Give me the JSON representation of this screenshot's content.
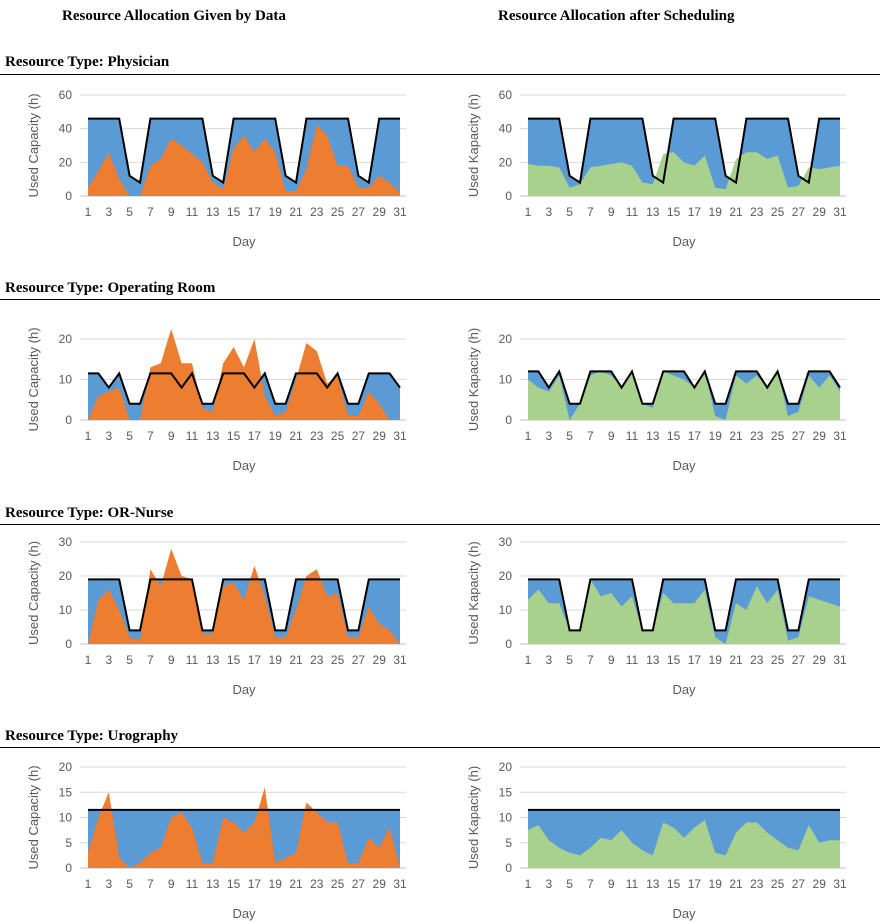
{
  "headers": {
    "left": "Resource Allocation Given by Data",
    "right": "Resource Allocation after Scheduling"
  },
  "colors": {
    "available": "#5b9bd5",
    "given": "#ed7d31",
    "scheduled": "#a9d18e",
    "capacity_line": "#000000",
    "grid": "#d9d9d9",
    "axis_text": "#595959"
  },
  "sections": [
    {
      "title": "Resource Type: Physician"
    },
    {
      "title": "Resource Type: Operating Room"
    },
    {
      "title": "Resource Type: OR-Nurse"
    },
    {
      "title": "Resource Type: Urography"
    }
  ],
  "chart_data": [
    {
      "type": "area",
      "section": 0,
      "panel": "given",
      "xlabel": "Day",
      "ylabel": "Used Capacity (h)",
      "ylim": [
        0,
        60
      ],
      "yticks": [
        0,
        20,
        40,
        60
      ],
      "x": [
        1,
        2,
        3,
        4,
        5,
        6,
        7,
        8,
        9,
        10,
        11,
        12,
        13,
        14,
        15,
        16,
        17,
        18,
        19,
        20,
        21,
        22,
        23,
        24,
        25,
        26,
        27,
        28,
        29,
        30,
        31
      ],
      "xtick_labels": [
        "1",
        "3",
        "5",
        "7",
        "9",
        "11",
        "13",
        "15",
        "17",
        "19",
        "21",
        "23",
        "25",
        "27",
        "29",
        "31"
      ],
      "capacity": [
        46,
        46,
        46,
        46,
        12,
        8,
        46,
        46,
        46,
        46,
        46,
        46,
        12,
        8,
        46,
        46,
        46,
        46,
        46,
        12,
        8,
        46,
        46,
        46,
        46,
        46,
        12,
        8,
        46,
        46,
        46
      ],
      "used": [
        5,
        15,
        26,
        10,
        0,
        0,
        18,
        22,
        34,
        30,
        25,
        20,
        8,
        4,
        28,
        36,
        26,
        34,
        26,
        3,
        3,
        16,
        42,
        36,
        18,
        18,
        5,
        5,
        12,
        8,
        2
      ]
    },
    {
      "type": "area",
      "section": 0,
      "panel": "scheduled",
      "xlabel": "Day",
      "ylabel": "Used Kapacity (h)",
      "ylim": [
        0,
        60
      ],
      "yticks": [
        0,
        20,
        40,
        60
      ],
      "x": [
        1,
        2,
        3,
        4,
        5,
        6,
        7,
        8,
        9,
        10,
        11,
        12,
        13,
        14,
        15,
        16,
        17,
        18,
        19,
        20,
        21,
        22,
        23,
        24,
        25,
        26,
        27,
        28,
        29,
        30,
        31
      ],
      "xtick_labels": [
        "1",
        "3",
        "5",
        "7",
        "9",
        "11",
        "13",
        "15",
        "17",
        "19",
        "21",
        "23",
        "25",
        "27",
        "29",
        "31"
      ],
      "capacity": [
        46,
        46,
        46,
        46,
        12,
        8,
        46,
        46,
        46,
        46,
        46,
        46,
        12,
        8,
        46,
        46,
        46,
        46,
        46,
        12,
        8,
        46,
        46,
        46,
        46,
        46,
        12,
        8,
        46,
        46,
        46
      ],
      "used": [
        19,
        18,
        18,
        17,
        5,
        7,
        17,
        18,
        19,
        20,
        18,
        8,
        7,
        25,
        26,
        20,
        18,
        24,
        5,
        4,
        22,
        26,
        26,
        22,
        24,
        5,
        6,
        17,
        16,
        17,
        18
      ]
    },
    {
      "type": "area",
      "section": 1,
      "panel": "given",
      "xlabel": "Day",
      "ylabel": "Used Capacity (h)",
      "ylim": [
        0,
        25
      ],
      "yticks": [
        0,
        10,
        20
      ],
      "x": [
        1,
        2,
        3,
        4,
        5,
        6,
        7,
        8,
        9,
        10,
        11,
        12,
        13,
        14,
        15,
        16,
        17,
        18,
        19,
        20,
        21,
        22,
        23,
        24,
        25,
        26,
        27,
        28,
        29,
        30,
        31
      ],
      "xtick_labels": [
        "1",
        "3",
        "5",
        "7",
        "9",
        "11",
        "13",
        "15",
        "17",
        "19",
        "21",
        "23",
        "25",
        "27",
        "29",
        "31"
      ],
      "capacity": [
        11.5,
        11.5,
        8,
        11.5,
        4,
        4,
        11.5,
        11.5,
        11.5,
        8,
        11.5,
        4,
        4,
        11.5,
        11.5,
        11.5,
        8,
        11.5,
        4,
        4,
        11.5,
        11.5,
        11.5,
        8,
        11.5,
        4,
        4,
        11.5,
        11.5,
        11.5,
        8
      ],
      "used": [
        0,
        6,
        7,
        8,
        0,
        0,
        13,
        14,
        22.5,
        14,
        14,
        3,
        2,
        14,
        18,
        13,
        20,
        6,
        1,
        2,
        10,
        19,
        17,
        9,
        11,
        1,
        1,
        7,
        4,
        0,
        0
      ]
    },
    {
      "type": "area",
      "section": 1,
      "panel": "scheduled",
      "xlabel": "Day",
      "ylabel": "Used Kapacity (h)",
      "ylim": [
        0,
        25
      ],
      "yticks": [
        0,
        10,
        20
      ],
      "x": [
        1,
        2,
        3,
        4,
        5,
        6,
        7,
        8,
        9,
        10,
        11,
        12,
        13,
        14,
        15,
        16,
        17,
        18,
        19,
        20,
        21,
        22,
        23,
        24,
        25,
        26,
        27,
        28,
        29,
        30,
        31
      ],
      "xtick_labels": [
        "1",
        "3",
        "5",
        "7",
        "9",
        "11",
        "13",
        "15",
        "17",
        "19",
        "21",
        "23",
        "25",
        "27",
        "29",
        "31"
      ],
      "capacity": [
        12,
        12,
        8,
        12,
        4,
        4,
        12,
        12,
        12,
        8,
        12,
        4,
        4,
        12,
        12,
        12,
        8,
        12,
        4,
        4,
        12,
        12,
        12,
        8,
        12,
        4,
        4,
        12,
        12,
        12,
        8
      ],
      "used": [
        10,
        8,
        7,
        11,
        0,
        4,
        11,
        12,
        11,
        8,
        12,
        4,
        3,
        12,
        11,
        10,
        8,
        12,
        1,
        0,
        11,
        9,
        11,
        8,
        12,
        1,
        2,
        11,
        8,
        11,
        7
      ]
    },
    {
      "type": "area",
      "section": 2,
      "panel": "given",
      "xlabel": "Day",
      "ylabel": "Used Capacity (h)",
      "ylim": [
        0,
        30
      ],
      "yticks": [
        0,
        10,
        20,
        30
      ],
      "x": [
        1,
        2,
        3,
        4,
        5,
        6,
        7,
        8,
        9,
        10,
        11,
        12,
        13,
        14,
        15,
        16,
        17,
        18,
        19,
        20,
        21,
        22,
        23,
        24,
        25,
        26,
        27,
        28,
        29,
        30,
        31
      ],
      "xtick_labels": [
        "1",
        "3",
        "5",
        "7",
        "9",
        "11",
        "13",
        "15",
        "17",
        "19",
        "21",
        "23",
        "25",
        "27",
        "29",
        "31"
      ],
      "capacity": [
        19,
        19,
        19,
        19,
        4,
        4,
        19,
        19,
        19,
        19,
        19,
        4,
        4,
        19,
        19,
        19,
        19,
        19,
        4,
        4,
        19,
        19,
        19,
        19,
        19,
        4,
        4,
        19,
        19,
        19,
        19
      ],
      "used": [
        0,
        13,
        16,
        10,
        2,
        1,
        22,
        17,
        28,
        20,
        19,
        3,
        3,
        17,
        18,
        13,
        23,
        14,
        2,
        2,
        10,
        20,
        22,
        14,
        15,
        2,
        2,
        11,
        6,
        4,
        0
      ]
    },
    {
      "type": "area",
      "section": 2,
      "panel": "scheduled",
      "xlabel": "Day",
      "ylabel": "Used Kapacity (h)",
      "ylim": [
        0,
        30
      ],
      "yticks": [
        0,
        10,
        20,
        30
      ],
      "x": [
        1,
        2,
        3,
        4,
        5,
        6,
        7,
        8,
        9,
        10,
        11,
        12,
        13,
        14,
        15,
        16,
        17,
        18,
        19,
        20,
        21,
        22,
        23,
        24,
        25,
        26,
        27,
        28,
        29,
        30,
        31
      ],
      "xtick_labels": [
        "1",
        "3",
        "5",
        "7",
        "9",
        "11",
        "13",
        "15",
        "17",
        "19",
        "21",
        "23",
        "25",
        "27",
        "29",
        "31"
      ],
      "capacity": [
        19,
        19,
        19,
        19,
        4,
        4,
        19,
        19,
        19,
        19,
        19,
        4,
        4,
        19,
        19,
        19,
        19,
        19,
        4,
        4,
        19,
        19,
        19,
        19,
        19,
        4,
        4,
        19,
        19,
        19,
        19
      ],
      "used": [
        13,
        16,
        12,
        12,
        4,
        4,
        19,
        14,
        15,
        11,
        14,
        4,
        4,
        15,
        12,
        12,
        12,
        16,
        2,
        0,
        12,
        10,
        17,
        12,
        16,
        1,
        2,
        14,
        13,
        12,
        11
      ]
    },
    {
      "type": "area",
      "section": 3,
      "panel": "given",
      "xlabel": "Day",
      "ylabel": "Used Capacity (h)",
      "ylim": [
        0,
        20
      ],
      "yticks": [
        0,
        5,
        10,
        15,
        20
      ],
      "x": [
        1,
        2,
        3,
        4,
        5,
        6,
        7,
        8,
        9,
        10,
        11,
        12,
        13,
        14,
        15,
        16,
        17,
        18,
        19,
        20,
        21,
        22,
        23,
        24,
        25,
        26,
        27,
        28,
        29,
        30,
        31
      ],
      "xtick_labels": [
        "1",
        "3",
        "5",
        "7",
        "9",
        "11",
        "13",
        "15",
        "17",
        "19",
        "21",
        "23",
        "25",
        "27",
        "29",
        "31"
      ],
      "capacity": [
        11.5,
        11.5,
        11.5,
        11.5,
        11.5,
        11.5,
        11.5,
        11.5,
        11.5,
        11.5,
        11.5,
        11.5,
        11.5,
        11.5,
        11.5,
        11.5,
        11.5,
        11.5,
        11.5,
        11.5,
        11.5,
        11.5,
        11.5,
        11.5,
        11.5,
        11.5,
        11.5,
        11.5,
        11.5,
        11.5,
        11.5
      ],
      "used": [
        3,
        10,
        15,
        2,
        0,
        1,
        3,
        4,
        10,
        11,
        8,
        1,
        1,
        10,
        9,
        7,
        9,
        16,
        1,
        2,
        3,
        13,
        11,
        9,
        9,
        1,
        1,
        6,
        4,
        8,
        0
      ]
    },
    {
      "type": "area",
      "section": 3,
      "panel": "scheduled",
      "xlabel": "Day",
      "ylabel": "Used Kapacity (h)",
      "ylim": [
        0,
        20
      ],
      "yticks": [
        0,
        5,
        10,
        15,
        20
      ],
      "x": [
        1,
        2,
        3,
        4,
        5,
        6,
        7,
        8,
        9,
        10,
        11,
        12,
        13,
        14,
        15,
        16,
        17,
        18,
        19,
        20,
        21,
        22,
        23,
        24,
        25,
        26,
        27,
        28,
        29,
        30,
        31
      ],
      "xtick_labels": [
        "1",
        "3",
        "5",
        "7",
        "9",
        "11",
        "13",
        "15",
        "17",
        "19",
        "21",
        "23",
        "25",
        "27",
        "29",
        "31"
      ],
      "capacity": [
        11.5,
        11.5,
        11.5,
        11.5,
        11.5,
        11.5,
        11.5,
        11.5,
        11.5,
        11.5,
        11.5,
        11.5,
        11.5,
        11.5,
        11.5,
        11.5,
        11.5,
        11.5,
        11.5,
        11.5,
        11.5,
        11.5,
        11.5,
        11.5,
        11.5,
        11.5,
        11.5,
        11.5,
        11.5,
        11.5,
        11.5
      ],
      "used": [
        7.5,
        8.5,
        5.5,
        4,
        3,
        2.5,
        4,
        6,
        5.5,
        7.5,
        5,
        3.5,
        2.5,
        9,
        8,
        6,
        8,
        9.5,
        3,
        2.5,
        7,
        9,
        9,
        7,
        5.5,
        4,
        3.5,
        8.5,
        5,
        5.5,
        5.5
      ]
    }
  ]
}
